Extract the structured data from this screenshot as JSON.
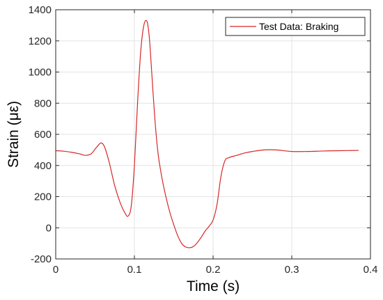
{
  "chart_data": {
    "type": "line",
    "title": "",
    "xlabel": "Time (s)",
    "ylabel": "Strain (με)",
    "xlim": [
      0,
      0.4
    ],
    "ylim": [
      -200,
      1400
    ],
    "xticks": [
      0,
      0.1,
      0.2,
      0.3,
      0.4
    ],
    "xtick_labels": [
      "0",
      "0.1",
      "0.2",
      "0.3",
      "0.4"
    ],
    "yticks": [
      -200,
      0,
      200,
      400,
      600,
      800,
      1000,
      1200,
      1400
    ],
    "ytick_labels": [
      "-200",
      "0",
      "200",
      "400",
      "600",
      "800",
      "1000",
      "1200",
      "1400"
    ],
    "grid": true,
    "legend_position": "top-right",
    "series": [
      {
        "name": "Test Data: Braking",
        "color": "#d62728",
        "x": [
          0,
          0.01,
          0.02,
          0.03,
          0.038,
          0.045,
          0.05,
          0.055,
          0.058,
          0.062,
          0.068,
          0.075,
          0.082,
          0.088,
          0.092,
          0.096,
          0.1,
          0.104,
          0.108,
          0.112,
          0.116,
          0.119,
          0.122,
          0.126,
          0.13,
          0.135,
          0.14,
          0.145,
          0.15,
          0.155,
          0.16,
          0.165,
          0.17,
          0.175,
          0.18,
          0.185,
          0.19,
          0.195,
          0.2,
          0.205,
          0.21,
          0.215,
          0.22,
          0.23,
          0.24,
          0.25,
          0.265,
          0.28,
          0.3,
          0.32,
          0.34,
          0.36,
          0.385
        ],
        "values": [
          495,
          492,
          485,
          475,
          465,
          475,
          505,
          535,
          545,
          520,
          420,
          270,
          160,
          95,
          75,
          140,
          400,
          800,
          1130,
          1300,
          1325,
          1220,
          1000,
          700,
          480,
          320,
          200,
          100,
          20,
          -50,
          -100,
          -123,
          -128,
          -120,
          -95,
          -60,
          -20,
          10,
          50,
          150,
          330,
          430,
          450,
          465,
          480,
          490,
          500,
          500,
          490,
          490,
          493,
          495,
          497
        ]
      }
    ]
  }
}
